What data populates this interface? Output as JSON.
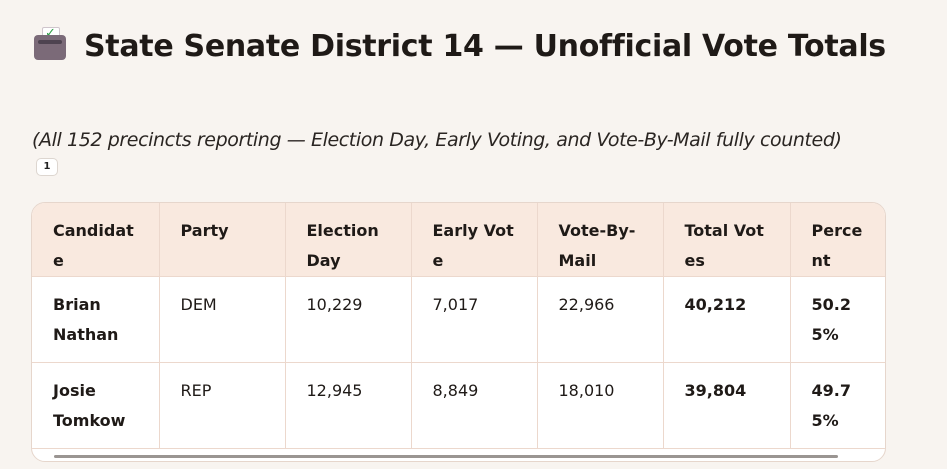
{
  "page": {
    "title": "State Senate District 14 — Unofficial Vote Totals",
    "subtitle": "(All 152 precincts reporting — Election Day, Early Voting, and Vote-By-Mail fully counted)",
    "footnote": "1",
    "title_icon": "ballot-box-icon"
  },
  "table": {
    "headers": [
      "Candidate",
      "Party",
      "Election Day",
      "Early Vote",
      "Vote-By-Mail",
      "Total Votes",
      "Percent"
    ],
    "rows": [
      {
        "candidate": "Brian Nathan",
        "party": "DEM",
        "election_day": "10,229",
        "early_vote": "7,017",
        "vote_by_mail": "22,966",
        "total": "40,212",
        "percent": "50.25%"
      },
      {
        "candidate": "Josie Tomkow",
        "party": "REP",
        "election_day": "12,945",
        "early_vote": "8,849",
        "vote_by_mail": "18,010",
        "total": "39,804",
        "percent": "49.75%"
      }
    ]
  }
}
